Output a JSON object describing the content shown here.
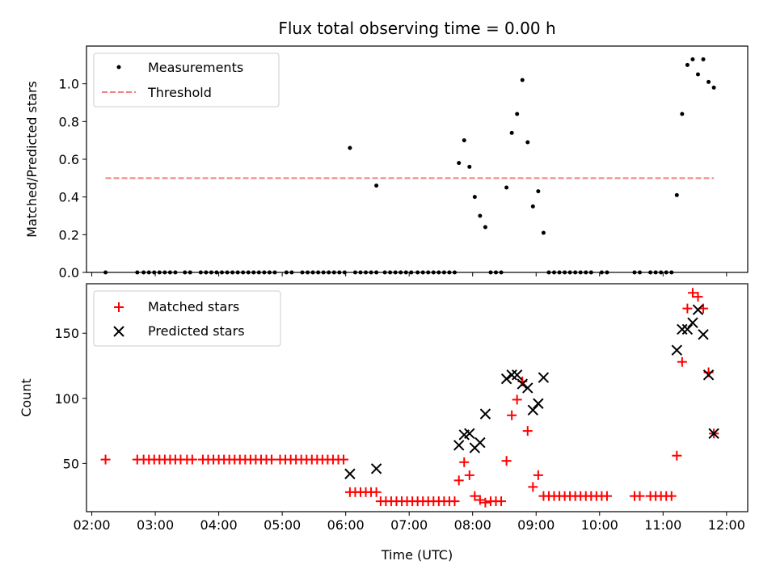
{
  "chart_data": [
    {
      "type": "scatter",
      "title": "Flux total observing time = 0.00 h",
      "xlabel": "",
      "ylabel": "Matched/Predicted stars",
      "xlim": [
        "01:55",
        "12:20"
      ],
      "ylim": [
        0,
        1.2
      ],
      "xticks": [
        "02:00",
        "03:00",
        "04:00",
        "05:00",
        "06:00",
        "07:00",
        "08:00",
        "09:00",
        "10:00",
        "11:00",
        "12:00"
      ],
      "yticks": [
        0.0,
        0.2,
        0.4,
        0.6,
        0.8,
        1.0
      ],
      "ytick_labels": [
        "0.0",
        "0.2",
        "0.4",
        "0.6",
        "0.8",
        "1.0"
      ],
      "grid": false,
      "legend_position": "top-left",
      "series": [
        {
          "name": "Measurements",
          "kind": "points",
          "color": "#000000",
          "points": [
            [
              "02:13",
              0
            ],
            [
              "02:43",
              0
            ],
            [
              "02:49",
              0
            ],
            [
              "02:54",
              0
            ],
            [
              "02:59",
              0
            ],
            [
              "03:04",
              0
            ],
            [
              "03:09",
              0
            ],
            [
              "03:14",
              0
            ],
            [
              "03:19",
              0
            ],
            [
              "03:28",
              0
            ],
            [
              "03:33",
              0
            ],
            [
              "03:43",
              0
            ],
            [
              "03:48",
              0
            ],
            [
              "03:53",
              0
            ],
            [
              "03:58",
              0
            ],
            [
              "04:03",
              0
            ],
            [
              "04:08",
              0
            ],
            [
              "04:13",
              0
            ],
            [
              "04:18",
              0
            ],
            [
              "04:23",
              0
            ],
            [
              "04:28",
              0
            ],
            [
              "04:33",
              0
            ],
            [
              "04:38",
              0
            ],
            [
              "04:43",
              0
            ],
            [
              "04:48",
              0
            ],
            [
              "04:53",
              0
            ],
            [
              "05:04",
              0
            ],
            [
              "05:09",
              0
            ],
            [
              "05:19",
              0
            ],
            [
              "05:24",
              0
            ],
            [
              "05:29",
              0
            ],
            [
              "05:34",
              0
            ],
            [
              "05:39",
              0
            ],
            [
              "05:44",
              0
            ],
            [
              "05:49",
              0
            ],
            [
              "05:54",
              0
            ],
            [
              "05:59",
              0
            ],
            [
              "06:04",
              0.66
            ],
            [
              "06:09",
              0
            ],
            [
              "06:14",
              0
            ],
            [
              "06:19",
              0
            ],
            [
              "06:24",
              0
            ],
            [
              "06:29",
              0
            ],
            [
              "06:29",
              0.46
            ],
            [
              "06:37",
              0
            ],
            [
              "06:42",
              0
            ],
            [
              "06:47",
              0
            ],
            [
              "06:52",
              0
            ],
            [
              "06:57",
              0
            ],
            [
              "07:02",
              0
            ],
            [
              "07:08",
              0
            ],
            [
              "07:13",
              0
            ],
            [
              "07:18",
              0
            ],
            [
              "07:23",
              0
            ],
            [
              "07:28",
              0
            ],
            [
              "07:33",
              0
            ],
            [
              "07:38",
              0
            ],
            [
              "07:43",
              0
            ],
            [
              "07:47",
              0.58
            ],
            [
              "07:52",
              0.7
            ],
            [
              "07:57",
              0.56
            ],
            [
              "08:02",
              0.4
            ],
            [
              "08:07",
              0.3
            ],
            [
              "08:12",
              0.24
            ],
            [
              "08:17",
              0
            ],
            [
              "08:22",
              0
            ],
            [
              "08:27",
              0
            ],
            [
              "08:32",
              0.45
            ],
            [
              "08:37",
              0.74
            ],
            [
              "08:42",
              0.84
            ],
            [
              "08:47",
              1.02
            ],
            [
              "08:52",
              0.69
            ],
            [
              "08:57",
              0.35
            ],
            [
              "09:02",
              0.43
            ],
            [
              "09:07",
              0.21
            ],
            [
              "09:12",
              0
            ],
            [
              "09:17",
              0
            ],
            [
              "09:22",
              0
            ],
            [
              "09:27",
              0
            ],
            [
              "09:32",
              0
            ],
            [
              "09:37",
              0
            ],
            [
              "09:42",
              0
            ],
            [
              "09:47",
              0
            ],
            [
              "09:52",
              0
            ],
            [
              "10:02",
              0
            ],
            [
              "10:07",
              0
            ],
            [
              "10:33",
              0
            ],
            [
              "10:38",
              0
            ],
            [
              "10:48",
              0
            ],
            [
              "10:53",
              0
            ],
            [
              "10:58",
              0
            ],
            [
              "11:03",
              0
            ],
            [
              "11:08",
              0
            ],
            [
              "11:13",
              0.41
            ],
            [
              "11:18",
              0.84
            ],
            [
              "11:23",
              1.1
            ],
            [
              "11:28",
              1.13
            ],
            [
              "11:33",
              1.05
            ],
            [
              "11:38",
              1.13
            ],
            [
              "11:43",
              1.01
            ],
            [
              "11:48",
              0.98
            ]
          ]
        },
        {
          "name": "Threshold",
          "kind": "dashed-line",
          "color": "#f08080",
          "points": [
            [
              "02:13",
              0.5
            ],
            [
              "11:48",
              0.5
            ]
          ]
        }
      ]
    },
    {
      "type": "scatter",
      "title": "",
      "xlabel": "Time (UTC)",
      "ylabel": "Count",
      "xlim": [
        "01:55",
        "12:20"
      ],
      "ylim": [
        13,
        188
      ],
      "xticks": [
        "02:00",
        "03:00",
        "04:00",
        "05:00",
        "06:00",
        "07:00",
        "08:00",
        "09:00",
        "10:00",
        "11:00",
        "12:00"
      ],
      "yticks": [
        50,
        100,
        150
      ],
      "ytick_labels": [
        "50",
        "100",
        "150"
      ],
      "grid": false,
      "legend_position": "top-left",
      "series": [
        {
          "name": "Matched stars",
          "kind": "plus",
          "color": "#ff0000",
          "points": [
            [
              "02:13",
              53
            ],
            [
              "02:43",
              53
            ],
            [
              "02:49",
              53
            ],
            [
              "02:54",
              53
            ],
            [
              "02:59",
              53
            ],
            [
              "03:04",
              53
            ],
            [
              "03:09",
              53
            ],
            [
              "03:14",
              53
            ],
            [
              "03:19",
              53
            ],
            [
              "03:24",
              53
            ],
            [
              "03:30",
              53
            ],
            [
              "03:35",
              53
            ],
            [
              "03:45",
              53
            ],
            [
              "03:50",
              53
            ],
            [
              "03:55",
              53
            ],
            [
              "04:00",
              53
            ],
            [
              "04:05",
              53
            ],
            [
              "04:10",
              53
            ],
            [
              "04:15",
              53
            ],
            [
              "04:20",
              53
            ],
            [
              "04:25",
              53
            ],
            [
              "04:30",
              53
            ],
            [
              "04:35",
              53
            ],
            [
              "04:40",
              53
            ],
            [
              "04:45",
              53
            ],
            [
              "04:50",
              53
            ],
            [
              "04:58",
              53
            ],
            [
              "05:03",
              53
            ],
            [
              "05:08",
              53
            ],
            [
              "05:13",
              53
            ],
            [
              "05:18",
              53
            ],
            [
              "05:23",
              53
            ],
            [
              "05:28",
              53
            ],
            [
              "05:33",
              53
            ],
            [
              "05:38",
              53
            ],
            [
              "05:43",
              53
            ],
            [
              "05:48",
              53
            ],
            [
              "05:53",
              53
            ],
            [
              "05:58",
              53
            ],
            [
              "06:04",
              28
            ],
            [
              "06:09",
              28
            ],
            [
              "06:14",
              28
            ],
            [
              "06:19",
              28
            ],
            [
              "06:24",
              28
            ],
            [
              "06:29",
              28
            ],
            [
              "06:33",
              21
            ],
            [
              "06:38",
              21
            ],
            [
              "06:43",
              21
            ],
            [
              "06:48",
              21
            ],
            [
              "06:53",
              21
            ],
            [
              "06:58",
              21
            ],
            [
              "07:03",
              21
            ],
            [
              "07:08",
              21
            ],
            [
              "07:13",
              21
            ],
            [
              "07:18",
              21
            ],
            [
              "07:23",
              21
            ],
            [
              "07:28",
              21
            ],
            [
              "07:33",
              21
            ],
            [
              "07:38",
              21
            ],
            [
              "07:43",
              21
            ],
            [
              "07:47",
              37
            ],
            [
              "07:52",
              51
            ],
            [
              "07:57",
              41
            ],
            [
              "08:02",
              25
            ],
            [
              "08:07",
              22
            ],
            [
              "08:12",
              20
            ],
            [
              "08:17",
              21
            ],
            [
              "08:22",
              21
            ],
            [
              "08:27",
              21
            ],
            [
              "08:32",
              52
            ],
            [
              "08:37",
              87
            ],
            [
              "08:42",
              99
            ],
            [
              "08:47",
              113
            ],
            [
              "08:52",
              75
            ],
            [
              "08:57",
              32
            ],
            [
              "09:02",
              41
            ],
            [
              "09:07",
              25
            ],
            [
              "09:12",
              25
            ],
            [
              "09:17",
              25
            ],
            [
              "09:22",
              25
            ],
            [
              "09:27",
              25
            ],
            [
              "09:32",
              25
            ],
            [
              "09:37",
              25
            ],
            [
              "09:42",
              25
            ],
            [
              "09:47",
              25
            ],
            [
              "09:52",
              25
            ],
            [
              "09:57",
              25
            ],
            [
              "10:02",
              25
            ],
            [
              "10:07",
              25
            ],
            [
              "10:33",
              25
            ],
            [
              "10:38",
              25
            ],
            [
              "10:48",
              25
            ],
            [
              "10:53",
              25
            ],
            [
              "10:58",
              25
            ],
            [
              "11:03",
              25
            ],
            [
              "11:08",
              25
            ],
            [
              "11:13",
              56
            ],
            [
              "11:18",
              128
            ],
            [
              "11:23",
              169
            ],
            [
              "11:28",
              181
            ],
            [
              "11:33",
              178
            ],
            [
              "11:38",
              169
            ],
            [
              "11:43",
              120
            ],
            [
              "11:48",
              73
            ]
          ]
        },
        {
          "name": "Predicted stars",
          "kind": "cross",
          "color": "#000000",
          "points": [
            [
              "06:04",
              42
            ],
            [
              "06:29",
              46
            ],
            [
              "07:47",
              64
            ],
            [
              "07:52",
              72
            ],
            [
              "07:57",
              73
            ],
            [
              "08:02",
              62
            ],
            [
              "08:07",
              66
            ],
            [
              "08:12",
              88
            ],
            [
              "08:32",
              115
            ],
            [
              "08:37",
              118
            ],
            [
              "08:42",
              118
            ],
            [
              "08:47",
              111
            ],
            [
              "08:52",
              108
            ],
            [
              "08:57",
              91
            ],
            [
              "09:02",
              96
            ],
            [
              "09:07",
              116
            ],
            [
              "11:13",
              137
            ],
            [
              "11:18",
              153
            ],
            [
              "11:23",
              153
            ],
            [
              "11:28",
              158
            ],
            [
              "11:33",
              168
            ],
            [
              "11:38",
              149
            ],
            [
              "11:43",
              118
            ],
            [
              "11:48",
              73
            ]
          ]
        }
      ]
    }
  ]
}
